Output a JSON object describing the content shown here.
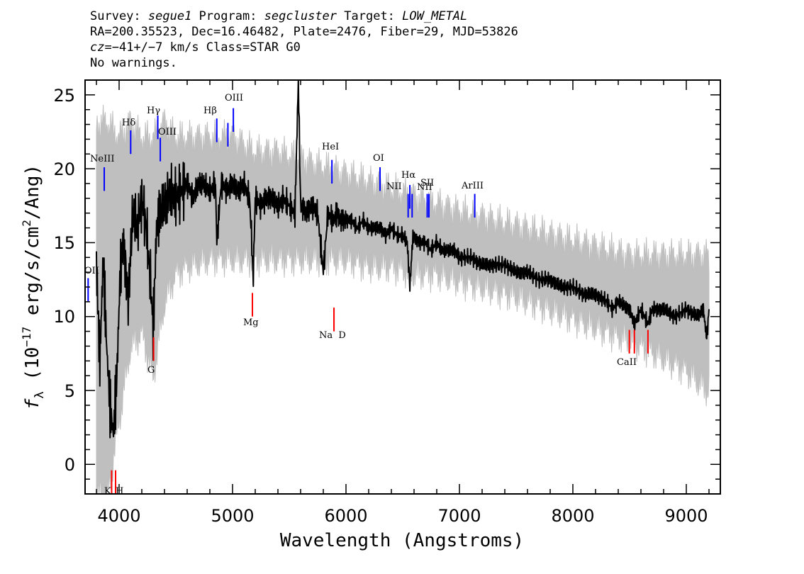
{
  "header": {
    "survey_label": "Survey: ",
    "survey": "segue1",
    "program_label": " Program: ",
    "program": "segcluster",
    "target_label": " Target: ",
    "target": "LOW_METAL",
    "line2": "RA=200.35523, Dec=16.46482, Plate=2476, Fiber=29, MJD=53826",
    "cz_label": "cz",
    "cz_value": "=−41+/−7",
    "cz_rest": " km/s Class=STAR G0",
    "line4": "No warnings."
  },
  "colors": {
    "flux": "#000000",
    "error": "#bfbfbf",
    "emission": "#0000ff",
    "absorption": "#ff0000"
  },
  "chart_data": {
    "type": "line",
    "xlabel": "Wavelength (Angstroms)",
    "ylabel_parts": {
      "f": "f",
      "sub": "λ",
      "paren_open": " (10",
      "exp": "−17",
      "unit": " erg/s/cm",
      "sq": "2",
      "tail": "/Ang)"
    },
    "xlim": [
      3700,
      9300
    ],
    "ylim": [
      -2,
      26
    ],
    "xticks": [
      4000,
      5000,
      6000,
      7000,
      8000,
      9000
    ],
    "xtick_labels": [
      "4000",
      "5000",
      "6000",
      "7000",
      "8000",
      "9000"
    ],
    "yticks": [
      0,
      5,
      10,
      15,
      20,
      25
    ],
    "ytick_labels": [
      "0",
      "5",
      "10",
      "15",
      "20",
      "25"
    ],
    "series": [
      {
        "style": "spectrum-flux",
        "x": [
          3800,
          3830,
          3860,
          3890,
          3920,
          3950,
          3980,
          4010,
          4040,
          4080,
          4120,
          4160,
          4200,
          4240,
          4280,
          4300,
          4330,
          4360,
          4400,
          4450,
          4500,
          4550,
          4600,
          4650,
          4700,
          4750,
          4800,
          4850,
          4861,
          4900,
          4950,
          5000,
          5050,
          5100,
          5150,
          5170,
          5183,
          5200,
          5250,
          5300,
          5350,
          5400,
          5450,
          5500,
          5550,
          5580,
          5600,
          5650,
          5700,
          5750,
          5800,
          5840,
          5890,
          5920,
          5950,
          6000,
          6050,
          6100,
          6150,
          6200,
          6250,
          6300,
          6350,
          6400,
          6450,
          6500,
          6540,
          6563,
          6590,
          6650,
          6700,
          6750,
          6800,
          6850,
          6900,
          6950,
          7000,
          7100,
          7200,
          7300,
          7400,
          7500,
          7600,
          7700,
          7800,
          7900,
          8000,
          8100,
          8200,
          8300,
          8350,
          8400,
          8500,
          8542,
          8600,
          8662,
          8700,
          8800,
          8900,
          9000,
          9100,
          9150,
          9180,
          9200
        ],
        "y": [
          13.5,
          7,
          14,
          8,
          4,
          2,
          6,
          13,
          15,
          11,
          17,
          16,
          18,
          16,
          12,
          9,
          16,
          17,
          17.5,
          18.5,
          18,
          18.5,
          19,
          18,
          19,
          19,
          18.5,
          19,
          15,
          19,
          18.5,
          19,
          18.5,
          19,
          18,
          15,
          12.5,
          18,
          17.5,
          18,
          18,
          17.5,
          18,
          17.5,
          17,
          26,
          17.5,
          17,
          17.5,
          17,
          13,
          17,
          16.5,
          17,
          16.5,
          16.5,
          16.5,
          16,
          16.5,
          16,
          16,
          16,
          15.5,
          16,
          15.5,
          15.5,
          15,
          12,
          15.5,
          15,
          15,
          14.5,
          15,
          14.5,
          14.5,
          14.5,
          14,
          14,
          13.5,
          13.5,
          13.5,
          13,
          13,
          12.5,
          12.5,
          12,
          12,
          11.5,
          11.5,
          11,
          10.5,
          11,
          10.5,
          9.5,
          10.5,
          9.5,
          10.5,
          10.5,
          10,
          10.5,
          10,
          10.5,
          8.5,
          10.5
        ]
      },
      {
        "style": "spectrum-error-envelope",
        "x": [
          3800,
          3900,
          4000,
          4100,
          4200,
          4300,
          4400,
          4500,
          4600,
          4800,
          5000,
          5200,
          5400,
          5600,
          5800,
          6000,
          6200,
          6400,
          6600,
          6800,
          7000,
          7500,
          8000,
          8500,
          9000,
          9200
        ],
        "upper": [
          23,
          23,
          22,
          23,
          22,
          22,
          23,
          22,
          22,
          22,
          22,
          21,
          21,
          20.5,
          20,
          19.5,
          19,
          18.5,
          18,
          17.5,
          17,
          16,
          15,
          14,
          14,
          14
        ],
        "lower": [
          -2,
          -2,
          3,
          8,
          9,
          6,
          11,
          13,
          13.5,
          14,
          14,
          14,
          14,
          14,
          14,
          14,
          13.5,
          13.5,
          13,
          13,
          12.5,
          11.5,
          10,
          8.5,
          6.5,
          5
        ]
      }
    ],
    "line_markers": [
      {
        "label": "OII",
        "wave": 3727,
        "kind": "emission",
        "y": 11
      },
      {
        "label": "NeIII",
        "wave": 3869,
        "kind": "emission",
        "y": 18.5
      },
      {
        "label": "Hδ",
        "wave": 4102,
        "kind": "emission",
        "y": 21
      },
      {
        "label": "Hγ",
        "wave": 4341,
        "kind": "emission",
        "y": 22
      },
      {
        "label": "OIII",
        "wave": 4363,
        "kind": "emission",
        "y": 20.5
      },
      {
        "label": "Hβ",
        "wave": 4861,
        "kind": "emission",
        "y": 21.8
      },
      {
        "label": "OIII",
        "wave": 4959,
        "kind": "emission",
        "y": 21.5
      },
      {
        "label": "OIII",
        "wave": 5007,
        "kind": "emission",
        "y": 22.5
      },
      {
        "label": "HeI",
        "wave": 5876,
        "kind": "emission",
        "y": 19
      },
      {
        "label": "OI",
        "wave": 6300,
        "kind": "emission",
        "y": 18.5
      },
      {
        "label": "NII",
        "wave": 6548,
        "kind": "emission",
        "y": 16.7
      },
      {
        "label": "Hα",
        "wave": 6563,
        "kind": "emission",
        "y": 17.3
      },
      {
        "label": "NII",
        "wave": 6583,
        "kind": "emission",
        "y": 16.7
      },
      {
        "label": "SII",
        "wave": 6716,
        "kind": "emission",
        "y": 16.7
      },
      {
        "label": "SII",
        "wave": 6731,
        "kind": "emission",
        "y": 16.7
      },
      {
        "label": "ArIII",
        "wave": 7135,
        "kind": "emission",
        "y": 16.7
      },
      {
        "label": "K",
        "wave": 3934,
        "kind": "absorption",
        "y": -2
      },
      {
        "label": "H",
        "wave": 3969,
        "kind": "absorption",
        "y": -2
      },
      {
        "label": "G",
        "wave": 4304,
        "kind": "absorption",
        "y": 7
      },
      {
        "label": "Mg",
        "wave": 5175,
        "kind": "absorption",
        "y": 10
      },
      {
        "label": "Na",
        "wave": 5894,
        "kind": "absorption",
        "y": 9
      },
      {
        "label": "D",
        "wave": 5894,
        "kind": "absorption",
        "y": 9
      },
      {
        "label": "CaII",
        "wave": 8498,
        "kind": "absorption",
        "y": 7.5
      },
      {
        "label": "CaII",
        "wave": 8542,
        "kind": "absorption",
        "y": 7.5
      },
      {
        "label": "CaII",
        "wave": 8662,
        "kind": "absorption",
        "y": 7.5
      }
    ],
    "line_label_texts": {
      "OII": "OII",
      "NeIII": "NeIII",
      "Hdelta": "Hδ",
      "Hgamma": "Hγ",
      "OIII_a": "OIII",
      "Hbeta": "Hβ",
      "OIII_b": "OIII",
      "HeI": "HeI",
      "OI": "OI",
      "NII_a": "NII",
      "Halpha": "Hα",
      "NII_b": "NII",
      "SII": "SII",
      "ArIII": "ArIII",
      "K": "K",
      "H": "H",
      "G": "G",
      "Mg": "Mg",
      "NaD": "Na  D",
      "CaII": "CaII"
    }
  }
}
